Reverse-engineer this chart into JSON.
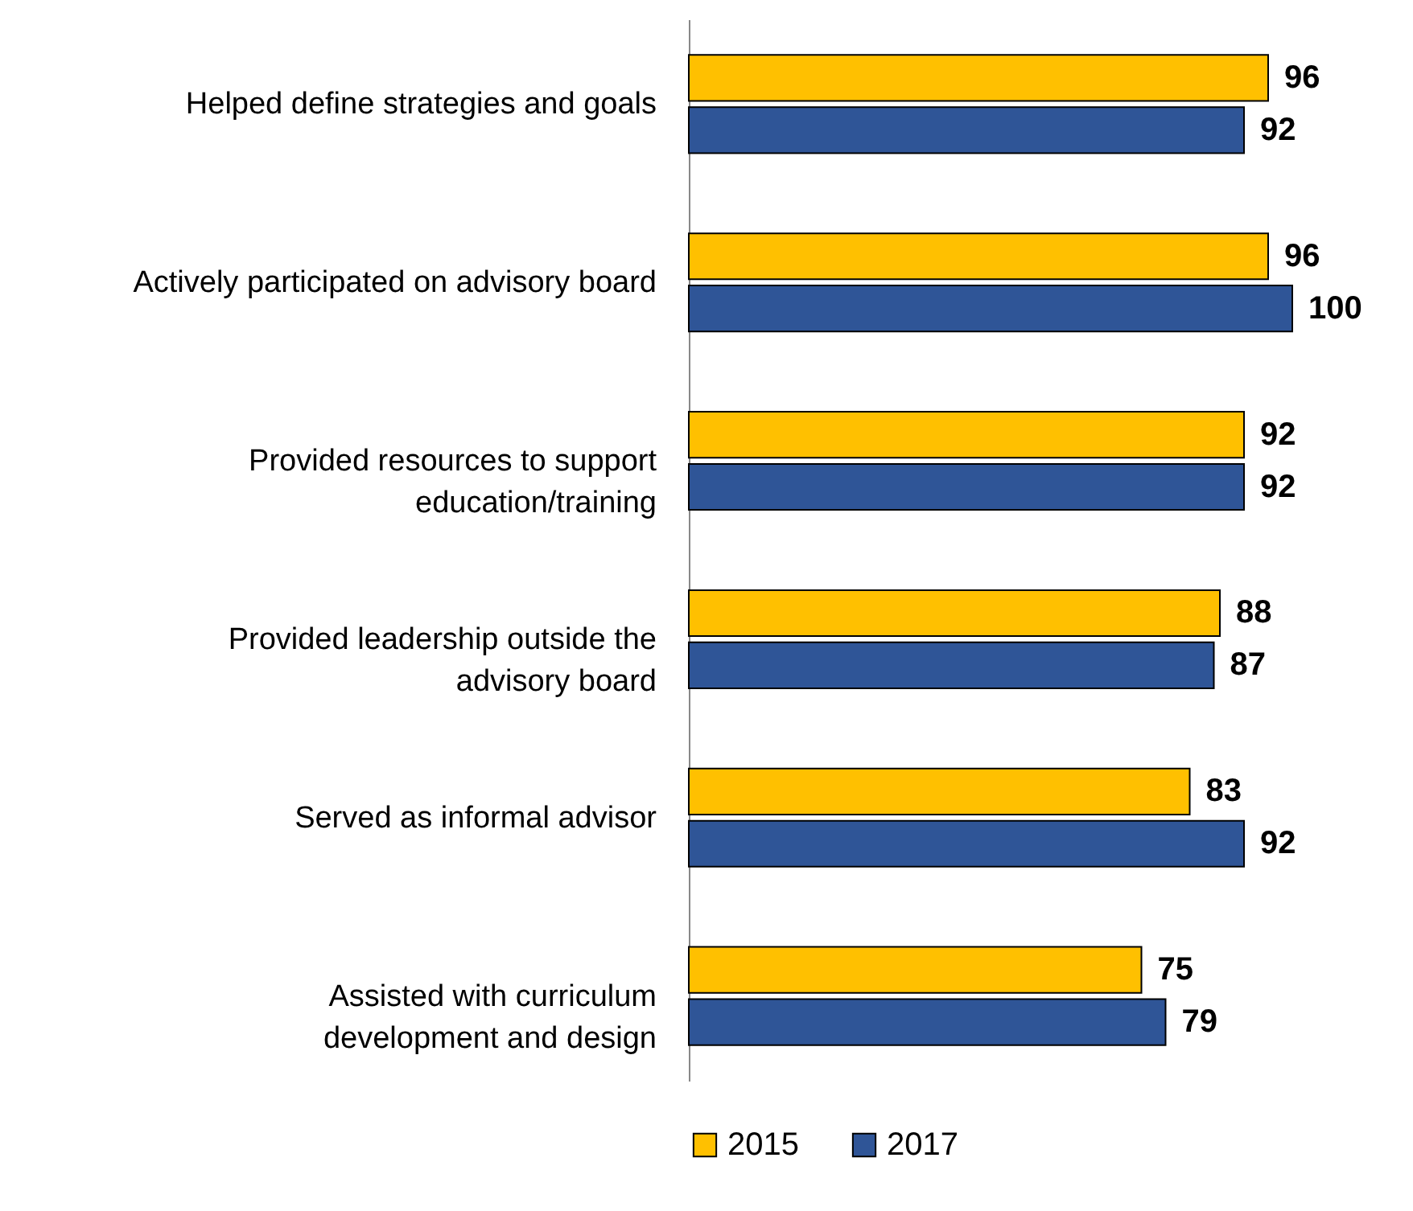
{
  "chart_data": {
    "type": "bar",
    "orientation": "horizontal",
    "data_labels": true,
    "legend": "bottom",
    "tick_labels": "y",
    "categories": [
      "Helped define strategies and goals",
      "Actively participated on advisory board",
      "Provided resources to support\neducation/training",
      "Provided leadership outside the\nadvisory board",
      "Served as informal advisor",
      "Assisted with curriculum\ndevelopment and design"
    ],
    "series": [
      {
        "name": "2015",
        "color": "#ffc000",
        "values": [
          96,
          96,
          92,
          88,
          83,
          75
        ]
      },
      {
        "name": "2017",
        "color": "#2f5597",
        "values": [
          92,
          100,
          92,
          87,
          92,
          79
        ]
      }
    ]
  }
}
